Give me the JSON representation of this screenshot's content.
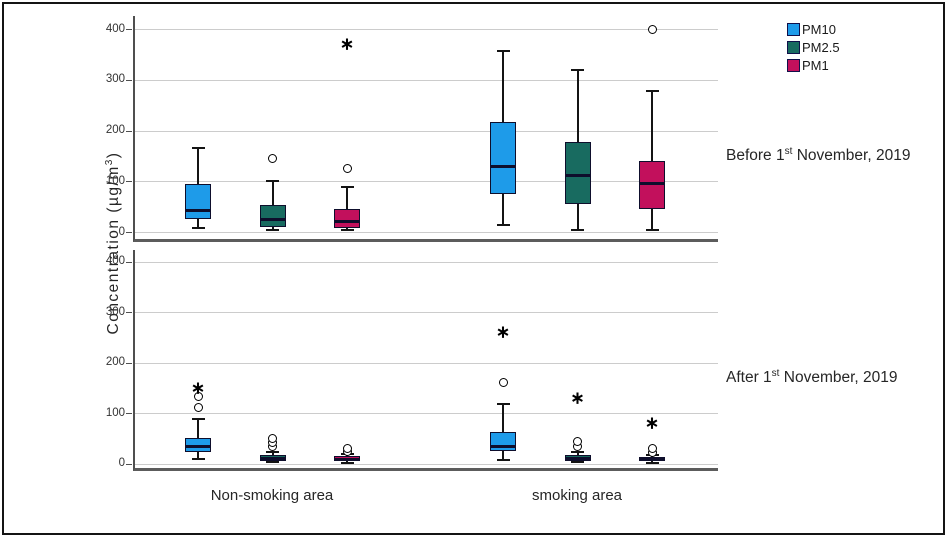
{
  "figure": {
    "ylabel_parts": {
      "pre": "Concentration (µg/m",
      "sup": "3",
      "post": ")"
    }
  },
  "chart_data": {
    "type": "boxplot",
    "title": "",
    "ylabel": "Concentration (µg/m³)",
    "xlabel": "",
    "yticks": [
      0,
      100,
      200,
      300,
      400
    ],
    "ylim": [
      0,
      425
    ],
    "grid": true,
    "legend_position": "top-right",
    "markers": {
      "outlier_shape": "open-circle",
      "extreme_shape": "asterisk",
      "extreme_glyph": "∗"
    },
    "categories": [
      "Non-smoking area",
      "smoking area"
    ],
    "series": [
      {
        "name": "PM10",
        "color": "#1E9BE9"
      },
      {
        "name": "PM2.5",
        "color": "#186B60"
      },
      {
        "name": "PM1",
        "color": "#C2105C"
      }
    ],
    "panels": [
      {
        "label": "Before 1st November, 2019",
        "label_parts": {
          "pre": "Before 1",
          "sup": "st",
          "post": " November, 2019"
        },
        "groups": [
          {
            "category": "Non-smoking area",
            "boxes": [
              {
                "series": "PM10",
                "low": 8,
                "q1": 25,
                "median": 42,
                "q3": 95,
                "high": 165,
                "outliers": [],
                "extremes": []
              },
              {
                "series": "PM2.5",
                "low": 3,
                "q1": 10,
                "median": 25,
                "q3": 53,
                "high": 100,
                "outliers": [
                  145
                ],
                "extremes": []
              },
              {
                "series": "PM1",
                "low": 3,
                "q1": 7,
                "median": 20,
                "q3": 45,
                "high": 88,
                "outliers": [
                  125
                ],
                "extremes": [
                  375
                ]
              }
            ]
          },
          {
            "category": "smoking area",
            "boxes": [
              {
                "series": "PM10",
                "low": 14,
                "q1": 74,
                "median": 130,
                "q3": 216,
                "high": 357,
                "outliers": [],
                "extremes": []
              },
              {
                "series": "PM2.5",
                "low": 4,
                "q1": 55,
                "median": 112,
                "q3": 177,
                "high": 320,
                "outliers": [],
                "extremes": []
              },
              {
                "series": "PM1",
                "low": 3,
                "q1": 45,
                "median": 96,
                "q3": 139,
                "high": 277,
                "outliers": [
                  400
                ],
                "extremes": []
              }
            ]
          }
        ]
      },
      {
        "label": "After 1st November, 2019",
        "label_parts": {
          "pre": "After 1",
          "sup": "st",
          "post": " November, 2019"
        },
        "groups": [
          {
            "category": "Non-smoking area",
            "boxes": [
              {
                "series": "PM10",
                "low": 8,
                "q1": 22,
                "median": 33,
                "q3": 50,
                "high": 89,
                "outliers": [
                  112,
                  132
                ],
                "extremes": [
                  153
                ]
              },
              {
                "series": "PM2.5",
                "low": 2,
                "q1": 5,
                "median": 10,
                "q3": 16,
                "high": 22,
                "outliers": [
                  33,
                  42,
                  50
                ],
                "extremes": []
              },
              {
                "series": "PM1",
                "low": 1,
                "q1": 4,
                "median": 8,
                "q3": 14,
                "high": 18,
                "outliers": [
                  24,
                  30
                ],
                "extremes": []
              }
            ]
          },
          {
            "category": "smoking area",
            "boxes": [
              {
                "series": "PM10",
                "low": 7,
                "q1": 24,
                "median": 34,
                "q3": 63,
                "high": 118,
                "outliers": [
                  160
                ],
                "extremes": [
                  265
                ]
              },
              {
                "series": "PM2.5",
                "low": 2,
                "q1": 5,
                "median": 10,
                "q3": 17,
                "high": 23,
                "outliers": [
                  34,
                  44
                ],
                "extremes": [
                  133
                ]
              },
              {
                "series": "PM1",
                "low": 1,
                "q1": 4,
                "median": 8,
                "q3": 13,
                "high": 17,
                "outliers": [
                  22,
                  30
                ],
                "extremes": [
                  84
                ]
              }
            ]
          }
        ]
      }
    ]
  }
}
